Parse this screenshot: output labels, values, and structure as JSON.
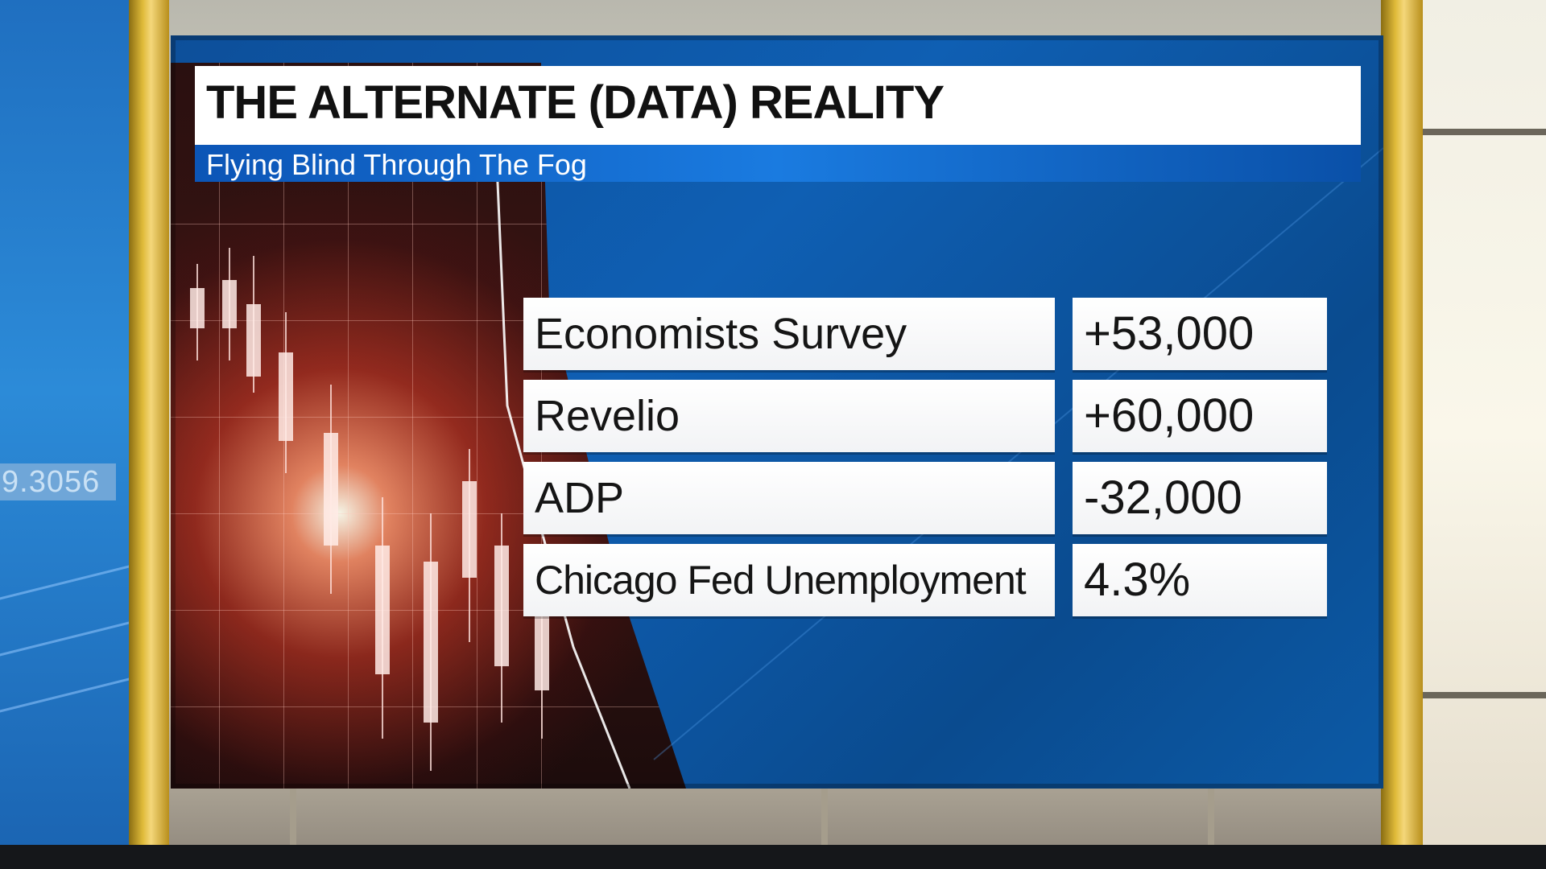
{
  "graphic": {
    "title": "THE ALTERNATE (DATA) REALITY",
    "subtitle": "Flying Blind Through The Fog",
    "rows": [
      {
        "label": "Economists Survey",
        "value": "+53,000"
      },
      {
        "label": "Revelio",
        "value": "+60,000"
      },
      {
        "label": "ADP",
        "value": "-32,000"
      },
      {
        "label": "Chicago Fed Unemployment",
        "value": "4.3%"
      }
    ]
  },
  "background_ticker": {
    "text": "9.3056"
  },
  "colors": {
    "panel_blue": "#0f5fb3",
    "subtitle_blue": "#1a7be0",
    "cell_white": "#ffffff",
    "pillar_gold": "#e0bb3a"
  }
}
